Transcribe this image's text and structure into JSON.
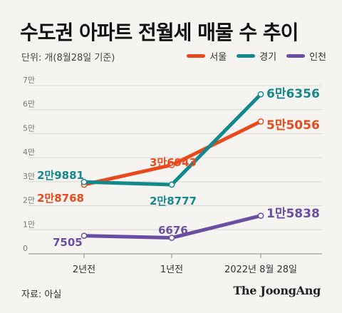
{
  "header": {
    "title": "수도권 아파트 전월세 매물 수 추이",
    "unit_note": "단위: 개(8월28일 기준)"
  },
  "footer": {
    "source": "자료: 아실",
    "logo": "The JoongAng"
  },
  "chart_data": {
    "type": "line",
    "categories": [
      "2년전",
      "1년전",
      "2022년 8월 28일"
    ],
    "y_ticks": [
      "0",
      "1만",
      "2만",
      "3만",
      "4만",
      "5만",
      "6만",
      "7만"
    ],
    "ylim": [
      0,
      70000
    ],
    "grid": true,
    "legend_position": "top-right",
    "series": [
      {
        "name": "서울",
        "color": "#e8491d",
        "values": [
          28768,
          36943,
          55056
        ],
        "labels": [
          "2만8768",
          "3만6943",
          "5만5056"
        ]
      },
      {
        "name": "경기",
        "color": "#14898d",
        "values": [
          29881,
          28777,
          66356
        ],
        "labels": [
          "2만9881",
          "2만8777",
          "6만6356"
        ]
      },
      {
        "name": "인천",
        "color": "#6a4ea3",
        "values": [
          7505,
          6676,
          15838
        ],
        "labels": [
          "7505",
          "6676",
          "1만5838"
        ]
      }
    ]
  }
}
